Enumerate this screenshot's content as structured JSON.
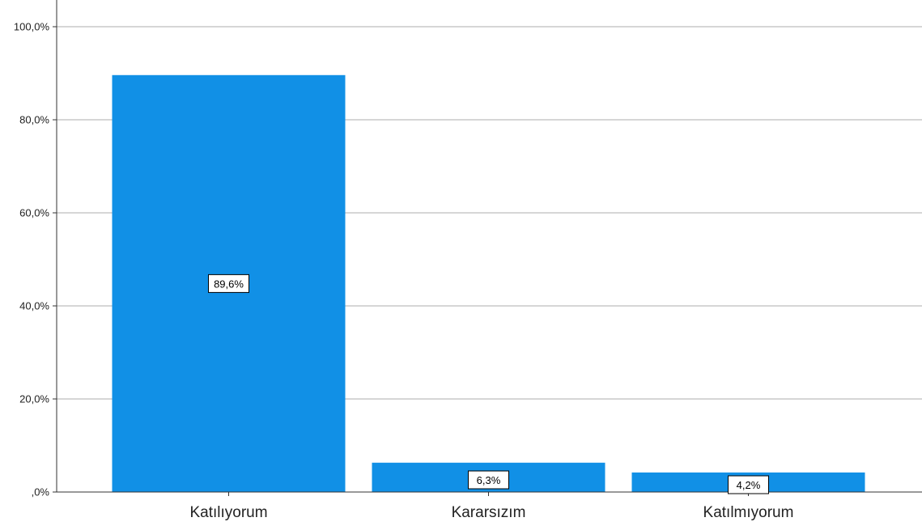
{
  "chart_data": {
    "type": "bar",
    "categories": [
      "Katılıyorum",
      "Kararsızım",
      "Katılmıyorum"
    ],
    "values": [
      89.6,
      6.3,
      4.2
    ],
    "data_labels": [
      "89,6%",
      "6,3%",
      "4,2%"
    ],
    "y_ticks": [
      0,
      20,
      40,
      60,
      80,
      100
    ],
    "y_tick_labels": [
      ",0%",
      "20,0%",
      "40,0%",
      "60,0%",
      "80,0%",
      "100,0%"
    ],
    "ylim": [
      0,
      100
    ],
    "grid": true,
    "legend": false,
    "title": "",
    "xlabel": "",
    "ylabel": "",
    "colors": {
      "bar": "#1190E6",
      "grid": "#C8C8C8",
      "axis": "#333333",
      "label_border": "#000000",
      "label_fill": "#FFFFFF"
    }
  }
}
